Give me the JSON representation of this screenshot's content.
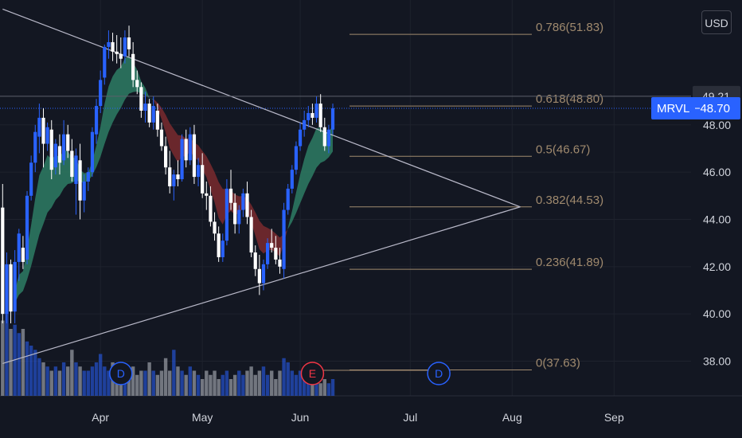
{
  "currency_button": "USD",
  "ticker": {
    "symbol": "MRVL",
    "price": "48.70",
    "color": "#2962ff"
  },
  "price_marker": {
    "value": "49.21"
  },
  "colors": {
    "background": "#131722",
    "up": "#2962ff",
    "down": "#ffffff",
    "vol_up": "#2962ff",
    "vol_down": "#b2b5be",
    "cloud_bull": "#2e7d64",
    "cloud_bear": "#7a2a2e",
    "fib": "#a08a6e",
    "trend": "#b9b9c9"
  },
  "events": [
    {
      "label": "D",
      "date_index": 29,
      "color": "#2962ff"
    },
    {
      "label": "E",
      "date_index": 76,
      "color": "#f23645"
    },
    {
      "label": "D",
      "date_index": 107,
      "color": "#2962ff"
    }
  ],
  "chart_data": {
    "type": "candlestick",
    "x_axis": {
      "ticks": [
        "Apr",
        "May",
        "Jun",
        "Jul",
        "Aug",
        "Sep"
      ],
      "tick_index": [
        24,
        49,
        73,
        100,
        125,
        150
      ]
    },
    "y_axis": {
      "ticks": [
        "38.00",
        "40.00",
        "42.00",
        "44.00",
        "46.00",
        "48.00"
      ],
      "ylim": [
        36.6,
        52.6
      ]
    },
    "fibonacci": [
      {
        "label": "0.786(51.83)",
        "value": 51.83
      },
      {
        "label": "0.618(48.80)",
        "value": 48.8
      },
      {
        "label": "0.5(46.67)",
        "value": 46.67
      },
      {
        "label": "0.382(44.53)",
        "value": 44.53
      },
      {
        "label": "0.236(41.89)",
        "value": 41.89
      },
      {
        "label": "0(37.63)",
        "value": 37.63
      }
    ],
    "trendlines": [
      {
        "from": [
          0,
          52.9
        ],
        "to": [
          127,
          44.53
        ]
      },
      {
        "from": [
          0,
          37.9
        ],
        "to": [
          127,
          44.53
        ]
      }
    ],
    "candles": [
      [
        0,
        44.5,
        45.5,
        39.6,
        40.0
      ],
      [
        1,
        40.0,
        42.6,
        39.6,
        42.1
      ],
      [
        2,
        42.1,
        42.3,
        39.6,
        40.1
      ],
      [
        3,
        40.1,
        42.7,
        39.6,
        42.2
      ],
      [
        4,
        42.2,
        43.6,
        41.4,
        43.4
      ],
      [
        5,
        42.8,
        43.3,
        41.9,
        42.2
      ],
      [
        6,
        42.3,
        45.2,
        42.1,
        45.0
      ],
      [
        7,
        45.0,
        46.7,
        44.8,
        46.4
      ],
      [
        8,
        46.4,
        48.0,
        46.0,
        47.7
      ],
      [
        9,
        47.5,
        48.9,
        46.8,
        48.3
      ],
      [
        10,
        48.3,
        48.7,
        46.2,
        47.2
      ],
      [
        11,
        47.2,
        48.1,
        46.9,
        47.9
      ],
      [
        12,
        47.8,
        48.2,
        45.7,
        46.1
      ],
      [
        13,
        46.2,
        47.4,
        45.9,
        47.2
      ],
      [
        14,
        47.1,
        47.6,
        45.9,
        46.4
      ],
      [
        15,
        46.5,
        48.2,
        46.3,
        47.6
      ],
      [
        16,
        47.6,
        48.0,
        46.6,
        46.9
      ],
      [
        17,
        46.9,
        47.4,
        45.6,
        45.8
      ],
      [
        18,
        45.5,
        47.0,
        44.2,
        46.7
      ],
      [
        19,
        46.5,
        47.2,
        44.0,
        44.8
      ],
      [
        20,
        44.8,
        45.9,
        44.3,
        45.6
      ],
      [
        21,
        45.6,
        46.2,
        45.2,
        46.0
      ],
      [
        22,
        46.0,
        47.9,
        45.8,
        47.7
      ],
      [
        23,
        47.6,
        49.1,
        47.2,
        48.8
      ],
      [
        24,
        48.8,
        50.3,
        48.5,
        49.9
      ],
      [
        25,
        50.0,
        51.4,
        49.7,
        51.3
      ],
      [
        26,
        51.3,
        52.0,
        50.8,
        51.5
      ],
      [
        27,
        51.5,
        51.9,
        50.7,
        51.1
      ],
      [
        28,
        51.1,
        51.8,
        50.6,
        51.0
      ],
      [
        29,
        51.0,
        51.7,
        50.4,
        50.8
      ],
      [
        30,
        50.9,
        52.0,
        50.6,
        51.7
      ],
      [
        31,
        51.7,
        52.2,
        50.9,
        51.2
      ],
      [
        32,
        51.0,
        51.5,
        49.6,
        49.9
      ],
      [
        33,
        49.9,
        50.3,
        49.3,
        49.6
      ],
      [
        34,
        49.6,
        49.8,
        48.3,
        48.6
      ],
      [
        35,
        48.6,
        49.4,
        48.1,
        48.9
      ],
      [
        36,
        48.9,
        49.1,
        47.9,
        48.1
      ],
      [
        37,
        48.1,
        49.2,
        47.8,
        48.8
      ],
      [
        38,
        48.6,
        48.9,
        47.5,
        47.8
      ],
      [
        39,
        47.8,
        48.1,
        46.9,
        47.1
      ],
      [
        40,
        47.1,
        47.5,
        45.9,
        46.2
      ],
      [
        41,
        46.2,
        46.9,
        45.1,
        45.4
      ],
      [
        42,
        45.4,
        46.1,
        44.8,
        45.9
      ],
      [
        43,
        45.9,
        46.5,
        45.4,
        45.7
      ],
      [
        44,
        45.7,
        47.6,
        45.6,
        47.4
      ],
      [
        45,
        47.4,
        47.8,
        46.2,
        46.5
      ],
      [
        46,
        46.5,
        47.9,
        46.3,
        47.6
      ],
      [
        47,
        47.6,
        48.0,
        45.5,
        45.8
      ],
      [
        48,
        45.8,
        46.6,
        45.4,
        46.3
      ],
      [
        49,
        46.3,
        46.8,
        44.9,
        45.1
      ],
      [
        50,
        45.1,
        45.6,
        44.4,
        45.0
      ],
      [
        51,
        45.0,
        45.4,
        43.7,
        43.9
      ],
      [
        52,
        43.9,
        44.3,
        43.1,
        43.4
      ],
      [
        53,
        43.4,
        43.7,
        42.2,
        42.4
      ],
      [
        54,
        42.4,
        43.4,
        42.2,
        43.1
      ],
      [
        55,
        43.1,
        45.7,
        42.9,
        45.3
      ],
      [
        56,
        45.3,
        46.1,
        44.4,
        44.7
      ],
      [
        57,
        44.7,
        45.1,
        43.4,
        43.8
      ],
      [
        58,
        43.8,
        44.6,
        43.4,
        44.4
      ],
      [
        59,
        44.4,
        45.3,
        44.1,
        45.1
      ],
      [
        60,
        45.1,
        45.6,
        43.8,
        44.1
      ],
      [
        61,
        44.1,
        44.4,
        42.4,
        42.6
      ],
      [
        62,
        42.6,
        42.9,
        41.6,
        41.9
      ],
      [
        63,
        41.9,
        42.5,
        40.8,
        41.3
      ],
      [
        64,
        41.3,
        42.3,
        41.0,
        42.1
      ],
      [
        65,
        42.1,
        43.2,
        41.9,
        43.0
      ],
      [
        66,
        43.0,
        43.6,
        42.6,
        42.8
      ],
      [
        67,
        42.8,
        43.3,
        42.1,
        42.3
      ],
      [
        68,
        42.3,
        42.8,
        41.7,
        42.0
      ],
      [
        69,
        41.9,
        44.7,
        41.5,
        44.4
      ],
      [
        70,
        44.4,
        45.5,
        44.2,
        45.3
      ],
      [
        71,
        45.3,
        46.3,
        45.1,
        46.1
      ],
      [
        72,
        46.1,
        47.3,
        45.9,
        47.1
      ],
      [
        73,
        47.1,
        48.1,
        46.9,
        47.8
      ],
      [
        74,
        47.8,
        48.6,
        47.5,
        48.2
      ],
      [
        75,
        48.2,
        48.8,
        47.9,
        48.5
      ],
      [
        76,
        48.5,
        48.9,
        48.0,
        48.3
      ],
      [
        77,
        48.3,
        49.2,
        48.1,
        48.9
      ],
      [
        78,
        48.9,
        49.3,
        47.7,
        47.9
      ],
      [
        79,
        47.9,
        48.3,
        46.9,
        47.1
      ],
      [
        80,
        47.1,
        48.0,
        46.8,
        47.8
      ],
      [
        81,
        47.8,
        48.9,
        47.6,
        48.7
      ]
    ],
    "volume": [
      [
        0,
        0.9
      ],
      [
        1,
        1.0
      ],
      [
        2,
        0.8
      ],
      [
        3,
        0.85
      ],
      [
        4,
        0.75
      ],
      [
        5,
        0.8
      ],
      [
        6,
        0.65
      ],
      [
        7,
        0.6
      ],
      [
        8,
        0.55
      ],
      [
        9,
        0.45
      ],
      [
        10,
        0.4
      ],
      [
        11,
        0.35
      ],
      [
        12,
        0.3
      ],
      [
        13,
        0.35
      ],
      [
        14,
        0.3
      ],
      [
        15,
        0.4
      ],
      [
        16,
        0.35
      ],
      [
        17,
        0.55
      ],
      [
        18,
        0.4
      ],
      [
        19,
        0.35
      ],
      [
        20,
        0.3
      ],
      [
        21,
        0.3
      ],
      [
        22,
        0.35
      ],
      [
        23,
        0.4
      ],
      [
        24,
        0.5
      ],
      [
        25,
        0.35
      ],
      [
        26,
        0.3
      ],
      [
        27,
        0.4
      ],
      [
        28,
        0.3
      ],
      [
        29,
        0.25
      ],
      [
        30,
        0.3
      ],
      [
        31,
        0.25
      ],
      [
        32,
        0.35
      ],
      [
        33,
        0.25
      ],
      [
        34,
        0.3
      ],
      [
        35,
        0.3
      ],
      [
        36,
        0.4
      ],
      [
        37,
        0.3
      ],
      [
        38,
        0.25
      ],
      [
        39,
        0.3
      ],
      [
        40,
        0.45
      ],
      [
        41,
        0.3
      ],
      [
        42,
        0.55
      ],
      [
        43,
        0.35
      ],
      [
        44,
        0.3
      ],
      [
        45,
        0.25
      ],
      [
        46,
        0.35
      ],
      [
        47,
        0.3
      ],
      [
        48,
        0.25
      ],
      [
        49,
        0.2
      ],
      [
        50,
        0.3
      ],
      [
        51,
        0.25
      ],
      [
        52,
        0.3
      ],
      [
        53,
        0.2
      ],
      [
        54,
        0.25
      ],
      [
        55,
        0.3
      ],
      [
        56,
        0.2
      ],
      [
        57,
        0.25
      ],
      [
        58,
        0.3
      ],
      [
        59,
        0.25
      ],
      [
        60,
        0.3
      ],
      [
        61,
        0.35
      ],
      [
        62,
        0.25
      ],
      [
        63,
        0.3
      ],
      [
        64,
        0.35
      ],
      [
        65,
        0.25
      ],
      [
        66,
        0.3
      ],
      [
        67,
        0.2
      ],
      [
        68,
        0.3
      ],
      [
        69,
        0.45
      ],
      [
        70,
        0.4
      ],
      [
        71,
        0.3
      ],
      [
        72,
        0.25
      ],
      [
        73,
        0.3
      ],
      [
        74,
        0.25
      ],
      [
        75,
        0.2
      ],
      [
        76,
        0.25
      ],
      [
        77,
        0.2
      ],
      [
        78,
        0.15
      ],
      [
        79,
        0.2
      ],
      [
        80,
        0.15
      ],
      [
        81,
        0.2
      ]
    ]
  }
}
